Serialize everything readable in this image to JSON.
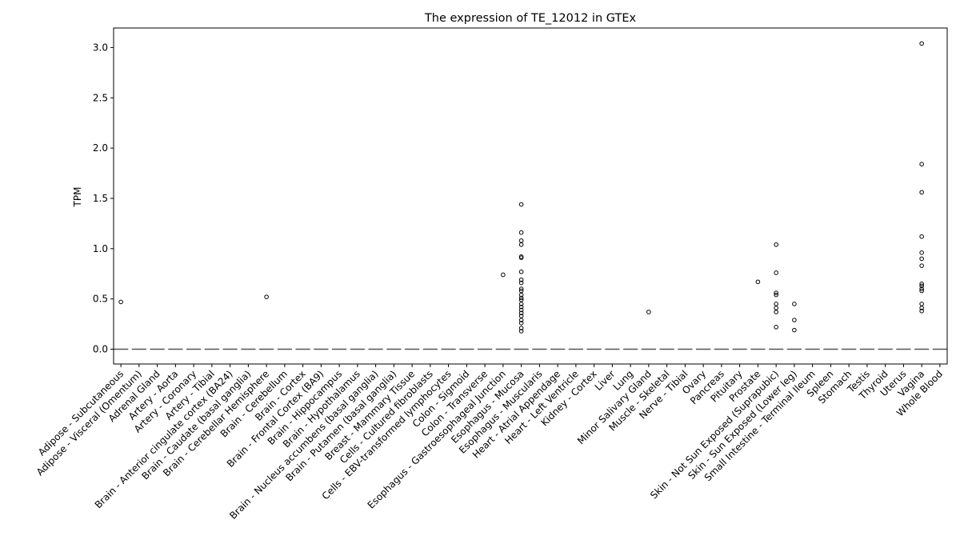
{
  "chart_data": {
    "type": "box",
    "title": "The expression of TE_12012 in GTEx",
    "xlabel": "",
    "ylabel": "TPM",
    "ylim": [
      -0.15,
      3.2
    ],
    "yticks": [
      "0.0",
      "0.5",
      "1.0",
      "1.5",
      "2.0",
      "2.5",
      "3.0"
    ],
    "grid": false,
    "legend": "none",
    "median_color": "#555555",
    "categories": [
      "Adipose - Subcutaneous",
      "Adipose - Visceral (Omentum)",
      "Adrenal Gland",
      "Artery - Aorta",
      "Artery - Coronary",
      "Artery - Tibial",
      "Brain - Anterior cingulate cortex (BA24)",
      "Brain - Caudate (basal ganglia)",
      "Brain - Cerebellar Hemisphere",
      "Brain - Cerebellum",
      "Brain - Cortex",
      "Brain - Frontal Cortex (BA9)",
      "Brain - Hippocampus",
      "Brain - Hypothalamus",
      "Brain - Nucleus accumbens (basal ganglia)",
      "Brain - Putamen (basal ganglia)",
      "Breast - Mammary Tissue",
      "Cells - Cultured fibroblasts",
      "Cells - EBV-transformed lymphocytes",
      "Colon - Sigmoid",
      "Colon - Transverse",
      "Esophagus - Gastroesophageal Junction",
      "Esophagus - Mucosa",
      "Esophagus - Muscularis",
      "Heart - Atrial Appendage",
      "Heart - Left Ventricle",
      "Kidney - Cortex",
      "Liver",
      "Lung",
      "Minor Salivary Gland",
      "Muscle - Skeletal",
      "Nerve - Tibial",
      "Ovary",
      "Pancreas",
      "Pituitary",
      "Prostate",
      "Skin - Not Sun Exposed (Suprapubic)",
      "Skin - Sun Exposed (Lower leg)",
      "Small Intestine - Terminal Ileum",
      "Spleen",
      "Stomach",
      "Testis",
      "Thyroid",
      "Uterus",
      "Vagina",
      "Whole Blood"
    ],
    "medians": [
      0,
      0,
      0,
      0,
      0,
      0,
      0,
      0,
      0,
      0,
      0,
      0,
      0,
      0,
      0,
      0,
      0,
      0,
      0,
      0,
      0,
      0,
      0,
      0,
      0,
      0,
      0,
      0,
      0,
      0,
      0,
      0,
      0,
      0,
      0,
      0,
      0,
      0,
      0,
      0,
      0,
      0,
      0,
      0,
      0,
      0
    ],
    "outliers": [
      {
        "category": "Adipose - Subcutaneous",
        "values": [
          0.47
        ]
      },
      {
        "category": "Brain - Cerebellar Hemisphere",
        "values": [
          0.52
        ]
      },
      {
        "category": "Esophagus - Gastroesophageal Junction",
        "values": [
          0.74
        ]
      },
      {
        "category": "Esophagus - Mucosa",
        "values": [
          1.44,
          1.16,
          1.08,
          1.04,
          0.92,
          0.91,
          0.77,
          0.69,
          0.66,
          0.6,
          0.58,
          0.54,
          0.51,
          0.49,
          0.45,
          0.42,
          0.39,
          0.36,
          0.33,
          0.29,
          0.26,
          0.21,
          0.18
        ]
      },
      {
        "category": "Minor Salivary Gland",
        "values": [
          0.37
        ]
      },
      {
        "category": "Prostate",
        "values": [
          0.67
        ]
      },
      {
        "category": "Skin - Not Sun Exposed (Suprapubic)",
        "values": [
          1.04,
          0.76,
          0.56,
          0.54,
          0.45,
          0.41,
          0.37,
          0.22
        ]
      },
      {
        "category": "Skin - Sun Exposed (Lower leg)",
        "values": [
          0.45,
          0.29,
          0.19
        ]
      },
      {
        "category": "Vagina",
        "values": [
          3.04,
          1.84,
          1.56,
          1.12,
          0.96,
          0.9,
          0.83,
          0.65,
          0.63,
          0.6,
          0.58,
          0.45,
          0.41,
          0.38
        ]
      }
    ]
  }
}
